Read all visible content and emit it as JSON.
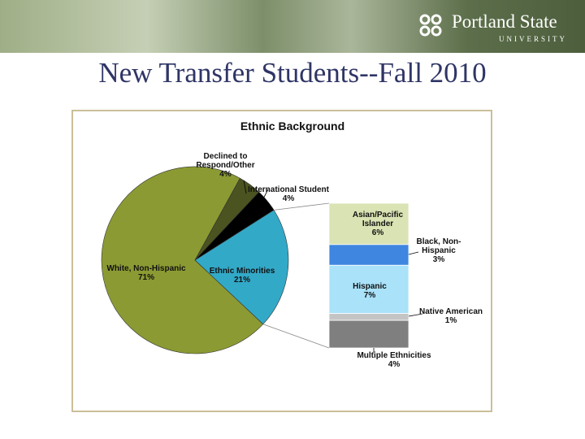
{
  "header": {
    "logo_name": "Portland State",
    "logo_sub": "UNIVERSITY"
  },
  "slide_title": "New Transfer Students--Fall 2010",
  "chart_data": [
    {
      "type": "pie",
      "title": "Ethnic Background",
      "categories": [
        "White, Non-Hispanic",
        "Declined to Respond/Other",
        "International Student",
        "Ethnic Minorities"
      ],
      "values": [
        71,
        4,
        4,
        21
      ],
      "value_labels": [
        "71%",
        "4%",
        "4%",
        "21%"
      ],
      "colors": [
        "#8c9a33",
        "#4b5320",
        "#000000",
        "#33a9c8"
      ]
    },
    {
      "type": "stacked-bar",
      "series": [
        {
          "name": "Asian/Pacific Islander",
          "color": "#d9e3b3",
          "values": [
            6
          ],
          "value_labels": [
            "6%"
          ]
        },
        {
          "name": "Black, Non-Hispanic",
          "color": "#3f86e0",
          "values": [
            3
          ],
          "value_labels": [
            "3%"
          ]
        },
        {
          "name": "Hispanic",
          "color": "#a9e2f9",
          "values": [
            7
          ],
          "value_labels": [
            "7%"
          ]
        },
        {
          "name": "Native American",
          "color": "#c4c4c4",
          "values": [
            1
          ],
          "value_labels": [
            "1%"
          ]
        },
        {
          "name": "Multiple Ethnicities",
          "color": "#7f7f7f",
          "values": [
            4
          ],
          "value_labels": [
            "4%"
          ]
        }
      ]
    }
  ]
}
